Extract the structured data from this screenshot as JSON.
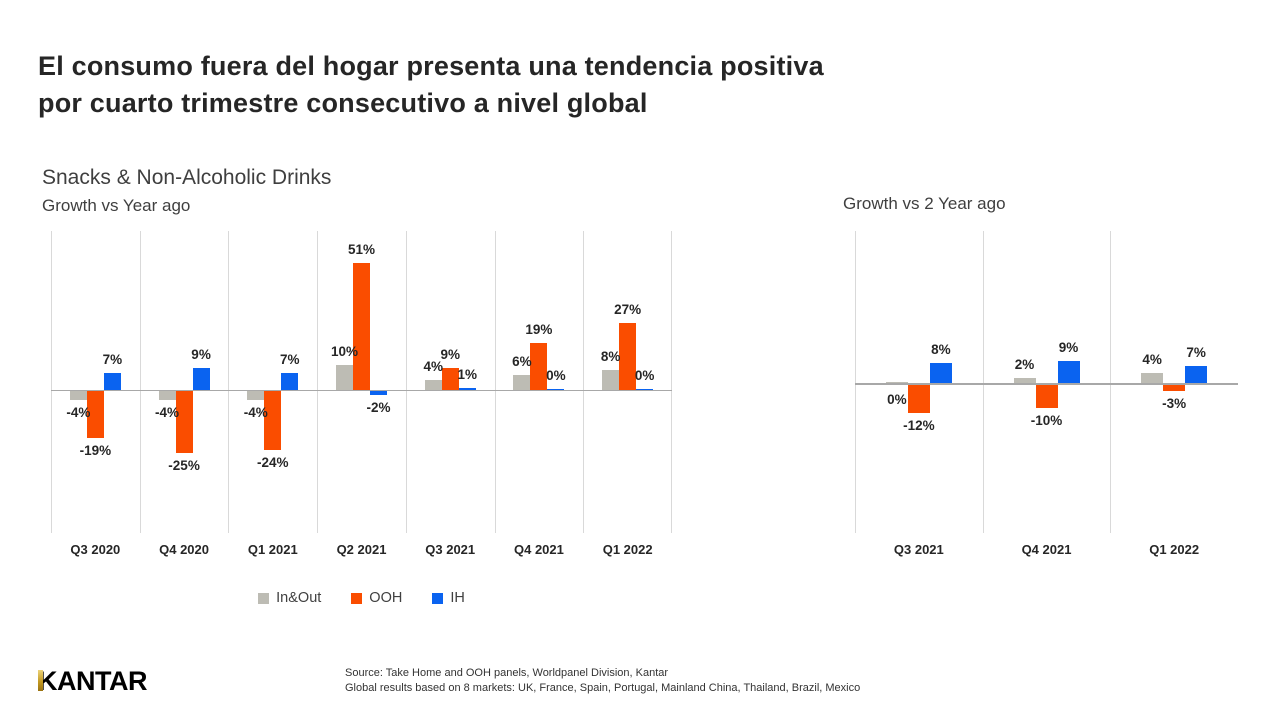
{
  "header": {
    "title_line1": "El consumo fuera del hogar presenta una tendencia positiva",
    "title_line2": "por cuarto trimestre consecutivo a nivel global"
  },
  "left_chart": {
    "title": "Snacks & Non-Alcoholic Drinks",
    "subtitle": "Growth vs Year ago"
  },
  "right_chart": {
    "title": "Growth vs 2 Year ago"
  },
  "legend": {
    "items": [
      {
        "label": "In&Out",
        "color": "#BDBCB4"
      },
      {
        "label": "OOH",
        "color": "#FA4D00"
      },
      {
        "label": "IH",
        "color": "#0A63F0"
      }
    ]
  },
  "colors": {
    "in_out_gray": "#BDBCB4",
    "ooh_orange": "#FA4D00",
    "ih_blue": "#0A63F0",
    "axis_line": "#A8A8A8",
    "gridline": "#D9D9D9",
    "kantar_gold": "#C49A22"
  },
  "chart_data": [
    {
      "type": "bar",
      "title": "Snacks & Non-Alcoholic Drinks",
      "subtitle": "Growth vs Year ago",
      "categories": [
        "Q3 2020",
        "Q4 2020",
        "Q1 2021",
        "Q2 2021",
        "Q3 2021",
        "Q4 2021",
        "Q1 2022"
      ],
      "series": [
        {
          "name": "In&Out",
          "color": "#BDBCB4",
          "values": [
            -4,
            -4,
            -4,
            10,
            4,
            6,
            8
          ]
        },
        {
          "name": "OOH",
          "color": "#FA4D00",
          "values": [
            -19,
            -25,
            -24,
            51,
            9,
            19,
            27
          ]
        },
        {
          "name": "IH",
          "color": "#0A63F0",
          "values": [
            7,
            9,
            7,
            -2,
            1,
            0,
            0
          ]
        }
      ],
      "unit": "%",
      "data_labels": true,
      "grid": "vertical-category-lines",
      "legend_position": "bottom",
      "ylim": [
        -57,
        64
      ],
      "label_overrides": []
    },
    {
      "type": "bar",
      "title": "Growth vs 2 Year ago",
      "categories": [
        "Q3 2021",
        "Q4 2021",
        "Q1 2022"
      ],
      "series": [
        {
          "name": "In&Out",
          "color": "#BDBCB4",
          "values": [
            0,
            2,
            4
          ]
        },
        {
          "name": "OOH",
          "color": "#FA4D00",
          "values": [
            -12,
            -10,
            -3
          ]
        },
        {
          "name": "IH",
          "color": "#0A63F0",
          "values": [
            8,
            9,
            7
          ]
        }
      ],
      "unit": "%",
      "data_labels": true,
      "grid": "vertical-category-lines",
      "legend_position": "none",
      "ylim": [
        -60,
        61
      ],
      "label_overrides": [
        {
          "series": 0,
          "category": 0,
          "position": "below"
        }
      ]
    }
  ],
  "footer": {
    "logo_text": "KANTAR",
    "source_line1": "Source: Take Home and OOH panels, Worldpanel Division, Kantar",
    "source_line2": "Global results based on 8 markets: UK, France, Spain, Portugal, Mainland China, Thailand, Brazil, Mexico"
  }
}
